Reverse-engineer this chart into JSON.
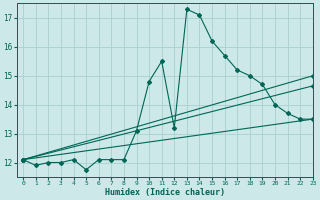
{
  "xlabel": "Humidex (Indice chaleur)",
  "ylabel": "",
  "xlim": [
    -0.5,
    23
  ],
  "ylim": [
    11.5,
    17.5
  ],
  "yticks": [
    12,
    13,
    14,
    15,
    16,
    17
  ],
  "xticks": [
    0,
    1,
    2,
    3,
    4,
    5,
    6,
    7,
    8,
    9,
    10,
    11,
    12,
    13,
    14,
    15,
    16,
    17,
    18,
    19,
    20,
    21,
    22,
    23
  ],
  "bg_color": "#cce8e8",
  "grid_color": "#aad0d0",
  "line_color": "#006655",
  "series1_x": [
    0,
    1,
    2,
    3,
    4,
    5,
    6,
    7,
    8,
    9,
    10,
    11,
    12,
    13,
    14,
    15,
    16,
    17,
    18,
    19,
    20,
    21,
    22,
    23
  ],
  "series1_y": [
    12.1,
    11.9,
    12.0,
    12.0,
    12.1,
    11.75,
    12.1,
    12.1,
    12.1,
    13.1,
    14.8,
    15.5,
    13.2,
    17.3,
    17.1,
    16.2,
    15.7,
    15.2,
    15.0,
    14.7,
    14.0,
    13.7,
    13.5,
    13.5
  ],
  "series2_x": [
    0,
    23
  ],
  "series2_y": [
    12.1,
    15.0
  ],
  "series3_x": [
    0,
    23
  ],
  "series3_y": [
    12.1,
    14.65
  ],
  "series4_x": [
    0,
    23
  ],
  "series4_y": [
    12.1,
    13.5
  ]
}
